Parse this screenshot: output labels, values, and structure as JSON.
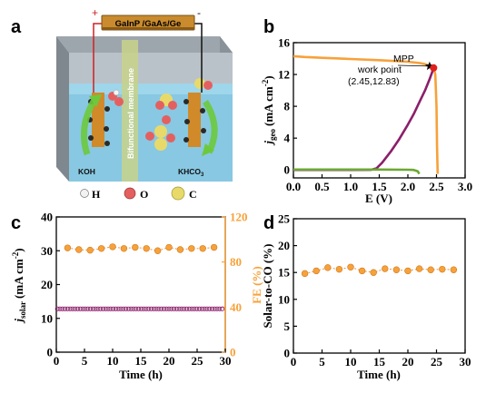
{
  "panel_labels": {
    "a": "a",
    "b": "b",
    "c": "c",
    "d": "d"
  },
  "schematic": {
    "device_label": "GaInP /GaAs/Ge",
    "plus_sign": "+",
    "minus_sign": "-",
    "membrane_label": "Bifunctional membrane",
    "left_electrolyte": "KOH",
    "right_electrolyte_main": "KHCO",
    "right_electrolyte_sub": "3",
    "legend": [
      {
        "symbol": "H",
        "label": "H",
        "color": "#f2f2f2"
      },
      {
        "symbol": "O",
        "label": "O",
        "color": "#e46060"
      },
      {
        "symbol": "C",
        "label": "C",
        "color": "#e8da6a"
      }
    ]
  },
  "colors": {
    "orange": "#f7a13a",
    "purple": "#8b1f6a",
    "green": "#6aa832",
    "red_marker": "#e02020",
    "dot_line": "#e08a30"
  },
  "chart_data": [
    {
      "panel": "b",
      "type": "line",
      "xlabel": "E (V)",
      "ylabel_main": "j",
      "ylabel_sub": "geo",
      "ylabel_unit": "(mA cm",
      "ylabel_sup": "-2",
      "ylabel_close": ")",
      "xlim": [
        0.0,
        3.0
      ],
      "ylim": [
        -1,
        16
      ],
      "xticks": [
        "0.0",
        "0.5",
        "1.0",
        "1.5",
        "2.0",
        "2.5",
        "3.0"
      ],
      "yticks": [
        "0",
        "4",
        "8",
        "12",
        "16"
      ],
      "series": [
        {
          "color": "#f7a13a",
          "x": [
            0.0,
            0.2,
            0.5,
            1.0,
            1.5,
            2.0,
            2.2,
            2.3,
            2.38,
            2.42,
            2.45,
            2.48,
            2.5,
            2.51,
            2.52
          ],
          "y": [
            14.3,
            14.2,
            14.1,
            13.95,
            13.8,
            13.6,
            13.45,
            13.3,
            13.1,
            12.95,
            12.83,
            12.0,
            8.0,
            3.0,
            -0.5
          ]
        },
        {
          "color": "#8b1f6a",
          "x": [
            0.0,
            1.0,
            1.35,
            1.45,
            1.55,
            1.7,
            1.85,
            2.0,
            2.1,
            2.2,
            2.3,
            2.38,
            2.45
          ],
          "y": [
            0.0,
            0.0,
            0.02,
            0.2,
            0.9,
            2.3,
            3.9,
            5.7,
            7.0,
            8.5,
            10.0,
            11.4,
            12.83
          ]
        },
        {
          "color": "#6aa832",
          "x": [
            0.0,
            0.5,
            1.0,
            1.5,
            2.0,
            2.1,
            2.17,
            2.2
          ],
          "y": [
            0.05,
            0.05,
            0.05,
            0.05,
            0.03,
            0.0,
            -0.15,
            -0.5
          ]
        }
      ],
      "markers": [
        {
          "label": "MPP",
          "x": 2.38,
          "y": 13.05,
          "shape": "star",
          "color": "#000000"
        },
        {
          "label": "work point",
          "x": 2.45,
          "y": 12.83,
          "shape": "dot",
          "color": "#e02020"
        }
      ],
      "annotations": {
        "mpp": "MPP",
        "work_point": "work point",
        "work_point_value": "(2.45,12.83)"
      }
    },
    {
      "panel": "c",
      "type": "scatter",
      "xlabel": "Time (h)",
      "ylabel_left_main": "j",
      "ylabel_left_sub": "solar",
      "ylabel_left_unit": "(mA cm",
      "ylabel_left_sup": "-2",
      "ylabel_left_close": ")",
      "ylabel_right": "FE (%)",
      "xlim": [
        0,
        30
      ],
      "ylim_left": [
        0,
        40
      ],
      "ylim_right": [
        0,
        120
      ],
      "xticks": [
        "0",
        "5",
        "10",
        "15",
        "20",
        "25",
        "30"
      ],
      "yticks_left": [
        "0",
        "10",
        "20",
        "30",
        "40"
      ],
      "yticks_right": [
        "0",
        "40",
        "80",
        "120"
      ],
      "series": [
        {
          "name_hidden": true,
          "axis": "right",
          "color": "#f7a13a",
          "x": [
            2,
            4,
            6,
            8,
            10,
            12,
            14,
            16,
            18,
            20,
            22,
            24,
            26,
            28
          ],
          "y": [
            92.5,
            91.0,
            90.5,
            92.0,
            93.5,
            92.0,
            93.0,
            92.0,
            90.0,
            93.0,
            91.0,
            92.0,
            92.0,
            93.0
          ]
        },
        {
          "name_hidden": true,
          "axis": "left",
          "color": "#8b1f6a",
          "x_start": 0.2,
          "x_end": 29.6,
          "x_step": 0.45,
          "y_value": 12.8
        }
      ]
    },
    {
      "panel": "d",
      "type": "scatter",
      "xlabel": "Time (h)",
      "ylabel": "Solar-to-CO (%)",
      "xlim": [
        0,
        30
      ],
      "ylim": [
        0,
        25
      ],
      "xticks": [
        "0",
        "5",
        "10",
        "15",
        "20",
        "25",
        "30"
      ],
      "yticks": [
        "0",
        "5",
        "10",
        "15",
        "20",
        "25"
      ],
      "series": [
        {
          "color": "#f7a13a",
          "x": [
            2,
            4,
            6,
            8,
            10,
            12,
            14,
            16,
            18,
            20,
            22,
            24,
            26,
            28
          ],
          "y": [
            14.8,
            15.3,
            15.9,
            15.6,
            16.0,
            15.3,
            15.0,
            15.7,
            15.5,
            15.3,
            15.7,
            15.5,
            15.6,
            15.5
          ]
        }
      ]
    }
  ]
}
